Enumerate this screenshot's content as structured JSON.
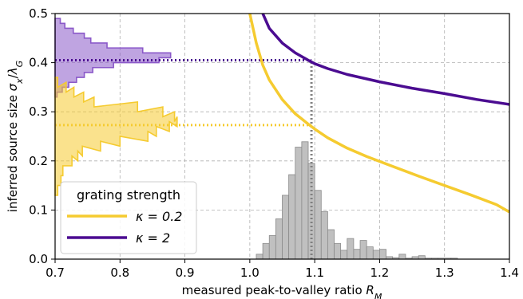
{
  "chart_data": {
    "type": "line",
    "xlabel": "measured peak-to-valley ratio R_M",
    "ylabel": "inferred source size σ_x/λ_G",
    "xlim": [
      0.7,
      1.4
    ],
    "ylim": [
      0.0,
      0.5
    ],
    "x_ticks": [
      "0.7",
      "0.8",
      "0.9",
      "1.0",
      "1.1",
      "1.2",
      "1.3",
      "1.4"
    ],
    "y_ticks": [
      "0.0",
      "0.1",
      "0.2",
      "0.3",
      "0.4",
      "0.5"
    ],
    "grid": true,
    "legend": {
      "title": "grating strength",
      "placement": "bottom-left",
      "entries": [
        "κ = 0.2",
        "κ = 2"
      ]
    },
    "series": [
      {
        "name": "κ = 0.2",
        "color": "#f5cb30",
        "x": [
          1.0,
          1.01,
          1.02,
          1.03,
          1.05,
          1.07,
          1.09,
          1.1,
          1.12,
          1.15,
          1.18,
          1.22,
          1.26,
          1.3,
          1.34,
          1.38,
          1.4
        ],
        "y": [
          0.5,
          0.44,
          0.395,
          0.365,
          0.325,
          0.296,
          0.275,
          0.265,
          0.247,
          0.226,
          0.209,
          0.189,
          0.169,
          0.15,
          0.131,
          0.111,
          0.096
        ]
      },
      {
        "name": "κ = 2",
        "color": "#4b0c91",
        "x": [
          1.02,
          1.03,
          1.05,
          1.07,
          1.09,
          1.1,
          1.12,
          1.15,
          1.2,
          1.25,
          1.3,
          1.35,
          1.4
        ],
        "y": [
          0.5,
          0.47,
          0.44,
          0.42,
          0.405,
          0.398,
          0.388,
          0.376,
          0.361,
          0.348,
          0.337,
          0.325,
          0.315
        ]
      }
    ],
    "reference_lines": [
      {
        "color": "#4b0c91",
        "from": [
          0.7,
          0.405
        ],
        "to": [
          1.095,
          0.405
        ]
      },
      {
        "color": "#f5cb30",
        "from": [
          0.7,
          0.273
        ],
        "to": [
          1.095,
          0.273
        ]
      },
      {
        "color": "#808080",
        "from": [
          1.095,
          0.0
        ],
        "to": [
          1.095,
          0.405
        ]
      }
    ],
    "histogram_measured": {
      "color": "#c0c0c0",
      "bin_width": 0.01,
      "bins_start": [
        1.01,
        1.02,
        1.03,
        1.04,
        1.05,
        1.06,
        1.07,
        1.08,
        1.09,
        1.1,
        1.11,
        1.12,
        1.13,
        1.14,
        1.15,
        1.16,
        1.17,
        1.18,
        1.19,
        1.2,
        1.21,
        1.22,
        1.23,
        1.24,
        1.25,
        1.26,
        1.27,
        1.28,
        1.29,
        1.3,
        1.31
      ],
      "heights": [
        0.01,
        0.032,
        0.048,
        0.082,
        0.13,
        0.172,
        0.228,
        0.239,
        0.195,
        0.14,
        0.097,
        0.06,
        0.032,
        0.018,
        0.042,
        0.02,
        0.038,
        0.025,
        0.018,
        0.02,
        0.005,
        0.003,
        0.01,
        0.002,
        0.005,
        0.007,
        0.002,
        0.002,
        0.002,
        0.002,
        0.002
      ]
    },
    "histogram_inferred_k02": {
      "color": "#f5cb30",
      "y": [
        0.13,
        0.15,
        0.17,
        0.19,
        0.2,
        0.21,
        0.22,
        0.23,
        0.24,
        0.25,
        0.26,
        0.27,
        0.28,
        0.29,
        0.3,
        0.31,
        0.32,
        0.33,
        0.34,
        0.35
      ],
      "x": [
        0.704,
        0.709,
        0.712,
        0.726,
        0.735,
        0.742,
        0.77,
        0.8,
        0.843,
        0.856,
        0.876,
        0.888,
        0.884,
        0.866,
        0.827,
        0.76,
        0.744,
        0.729,
        0.717,
        0.704
      ]
    },
    "histogram_inferred_k2": {
      "color": "#8b59c9",
      "y": [
        0.33,
        0.34,
        0.35,
        0.36,
        0.37,
        0.38,
        0.39,
        0.4,
        0.41,
        0.42,
        0.43,
        0.44,
        0.45,
        0.46,
        0.47,
        0.48
      ],
      "x": [
        0.703,
        0.711,
        0.721,
        0.733,
        0.745,
        0.758,
        0.79,
        0.86,
        0.878,
        0.835,
        0.78,
        0.755,
        0.745,
        0.728,
        0.715,
        0.708
      ]
    }
  }
}
